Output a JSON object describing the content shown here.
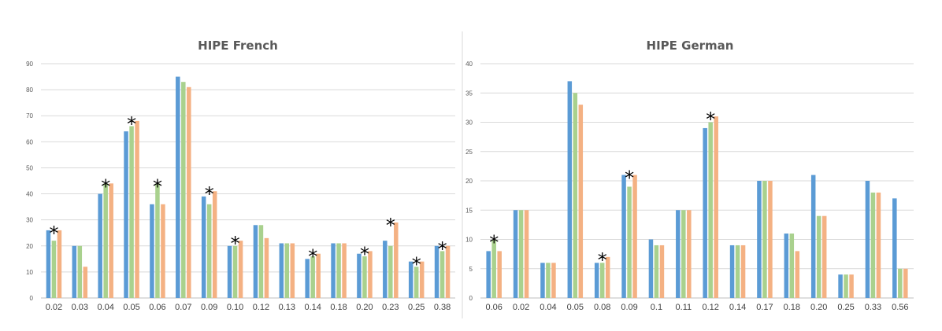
{
  "chart_data": [
    {
      "type": "bar",
      "title": "HIPE French",
      "xlabel": "",
      "ylabel": "",
      "ylim": [
        0,
        90
      ],
      "yticks": [
        0,
        10,
        20,
        30,
        40,
        50,
        60,
        70,
        80,
        90
      ],
      "grid": true,
      "categories": [
        "0.02",
        "0.03",
        "0.04",
        "0.05",
        "0.06",
        "0.07",
        "0.09",
        "0.10",
        "0.12",
        "0.13",
        "0.14",
        "0.18",
        "0.20",
        "0.23",
        "0.25",
        "0.38"
      ],
      "series": [
        {
          "color": "#5b9bd5",
          "values": [
            26,
            20,
            40,
            64,
            36,
            85,
            39,
            20,
            28,
            21,
            15,
            21,
            17,
            22,
            14,
            20
          ]
        },
        {
          "color": "#a9d18e",
          "values": [
            22,
            20,
            44,
            66,
            44,
            83,
            36,
            20,
            28,
            21,
            16,
            21,
            16,
            20,
            12,
            18
          ]
        },
        {
          "color": "#f4b183",
          "values": [
            26,
            12,
            44,
            68,
            36,
            81,
            41,
            22,
            23,
            21,
            17,
            21,
            18,
            29,
            14,
            20
          ]
        }
      ],
      "annotations": [
        {
          "text": "*",
          "category": "0.02",
          "y": 26
        },
        {
          "text": "*",
          "category": "0.04",
          "y": 44
        },
        {
          "text": "*",
          "category": "0.05",
          "y": 68
        },
        {
          "text": "*",
          "category": "0.06",
          "y": 44
        },
        {
          "text": "*",
          "category": "0.09",
          "y": 41
        },
        {
          "text": "*",
          "category": "0.10",
          "y": 22
        },
        {
          "text": "*",
          "category": "0.14",
          "y": 17
        },
        {
          "text": "*",
          "category": "0.20",
          "y": 18
        },
        {
          "text": "*",
          "category": "0.23",
          "y": 29
        },
        {
          "text": "*",
          "category": "0.25",
          "y": 14
        },
        {
          "text": "*",
          "category": "0.38",
          "y": 20
        }
      ]
    },
    {
      "type": "bar",
      "title": "HIPE German",
      "xlabel": "",
      "ylabel": "",
      "ylim": [
        0,
        40
      ],
      "yticks": [
        0,
        5,
        10,
        15,
        20,
        25,
        30,
        35,
        40
      ],
      "grid": true,
      "categories": [
        "0.06",
        "0.02",
        "0.04",
        "0.05",
        "0.08",
        "0.09",
        "0.1",
        "0.11",
        "0.12",
        "0.14",
        "0.17",
        "0.18",
        "0.20",
        "0.25",
        "0.33",
        "0.56"
      ],
      "series": [
        {
          "color": "#5b9bd5",
          "values": [
            8,
            15,
            6,
            37,
            6,
            21,
            10,
            15,
            29,
            9,
            20,
            11,
            21,
            4,
            20,
            17
          ]
        },
        {
          "color": "#a9d18e",
          "values": [
            10,
            15,
            6,
            35,
            6,
            19,
            9,
            15,
            30,
            9,
            20,
            11,
            14,
            4,
            18,
            5
          ]
        },
        {
          "color": "#f4b183",
          "values": [
            8,
            15,
            6,
            33,
            7,
            21,
            9,
            15,
            31,
            9,
            20,
            8,
            14,
            4,
            18,
            5
          ]
        }
      ],
      "annotations": [
        {
          "text": "*",
          "category": "0.06",
          "y": 10
        },
        {
          "text": "*",
          "category": "0.08",
          "y": 7
        },
        {
          "text": "*",
          "category": "0.09",
          "y": 21
        },
        {
          "text": "*",
          "category": "0.12",
          "y": 31
        }
      ]
    }
  ]
}
